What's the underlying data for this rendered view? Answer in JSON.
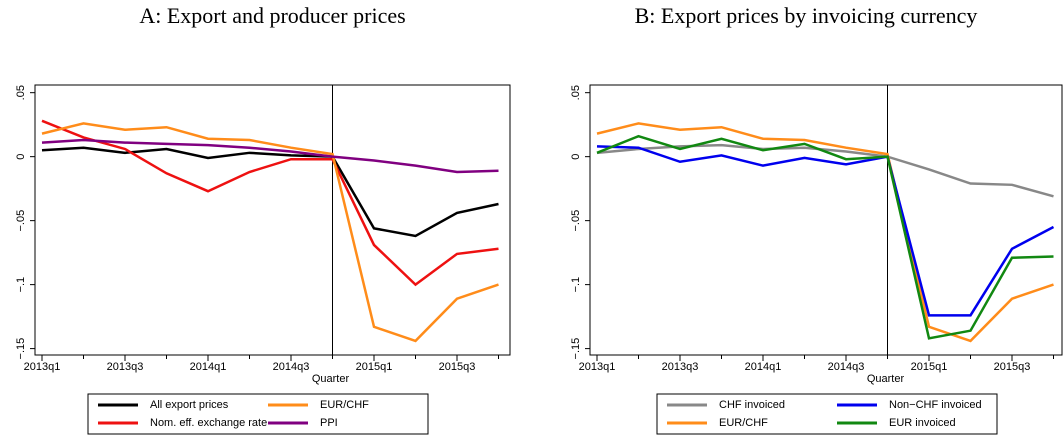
{
  "chart_data": [
    {
      "type": "line",
      "title": "A: Export and producer prices",
      "x_label": "Quarter",
      "categories": [
        "2013q1",
        null,
        "2013q3",
        null,
        "2014q1",
        null,
        "2014q3",
        null,
        "2015q1",
        null,
        "2015q3",
        null
      ],
      "ylim": [
        -0.155,
        0.056
      ],
      "yticks": [
        {
          "value": 0.05,
          "label": ".05"
        },
        {
          "value": 0,
          "label": "0"
        },
        {
          "value": -0.05,
          "label": "−.05"
        },
        {
          "value": -0.1,
          "label": "−.1"
        },
        {
          "value": -0.15,
          "label": "−.15"
        }
      ],
      "vline_index": 7,
      "series": [
        {
          "name": "All export prices",
          "color": "#000000",
          "values": [
            0.005,
            0.007,
            0.003,
            0.006,
            -0.001,
            0.003,
            0.001,
            0,
            -0.056,
            -0.062,
            -0.044,
            -0.037
          ]
        },
        {
          "name": "Nom. eff. exchange rate",
          "color": "#ee1111",
          "values": [
            0.028,
            0.015,
            0.006,
            -0.013,
            -0.027,
            -0.012,
            -0.002,
            -0.002,
            -0.069,
            -0.1,
            -0.076,
            -0.072
          ]
        },
        {
          "name": "EUR/CHF",
          "color": "#ff8c1a",
          "values": [
            0.018,
            0.026,
            0.021,
            0.023,
            0.014,
            0.013,
            0.007,
            0.002,
            -0.133,
            -0.144,
            -0.111,
            -0.1
          ]
        },
        {
          "name": "PPI",
          "color": "#800080",
          "values": [
            0.011,
            0.013,
            0.011,
            0.01,
            0.009,
            0.007,
            0.004,
            0,
            -0.003,
            -0.007,
            -0.012,
            -0.011
          ]
        }
      ]
    },
    {
      "type": "line",
      "title": "B: Export prices by invoicing currency",
      "x_label": "Quarter",
      "categories": [
        "2013q1",
        null,
        "2013q3",
        null,
        "2014q1",
        null,
        "2014q3",
        null,
        "2015q1",
        null,
        "2015q3",
        null
      ],
      "ylim": [
        -0.155,
        0.056
      ],
      "yticks": [
        {
          "value": 0.05,
          "label": ".05"
        },
        {
          "value": 0,
          "label": "0"
        },
        {
          "value": -0.05,
          "label": "−.05"
        },
        {
          "value": -0.1,
          "label": "−.1"
        },
        {
          "value": -0.15,
          "label": "−.15"
        }
      ],
      "vline_index": 7,
      "series": [
        {
          "name": "CHF invoiced",
          "color": "#888888",
          "values": [
            0.003,
            0.006,
            0.008,
            0.009,
            0.006,
            0.007,
            0.004,
            0,
            -0.01,
            -0.021,
            -0.022,
            -0.031
          ]
        },
        {
          "name": "EUR/CHF",
          "color": "#ff8c1a",
          "values": [
            0.018,
            0.026,
            0.021,
            0.023,
            0.014,
            0.013,
            0.007,
            0.002,
            -0.133,
            -0.144,
            -0.111,
            -0.1
          ]
        },
        {
          "name": "Non−CHF invoiced",
          "color": "#0000ee",
          "values": [
            0.008,
            0.007,
            -0.004,
            0.001,
            -0.007,
            -0.001,
            -0.006,
            0,
            -0.124,
            -0.124,
            -0.072,
            -0.055
          ]
        },
        {
          "name": "EUR invoiced",
          "color": "#118811",
          "values": [
            0.003,
            0.016,
            0.006,
            0.014,
            0.005,
            0.01,
            -0.002,
            0,
            -0.142,
            -0.136,
            -0.079,
            -0.078
          ]
        }
      ]
    }
  ]
}
